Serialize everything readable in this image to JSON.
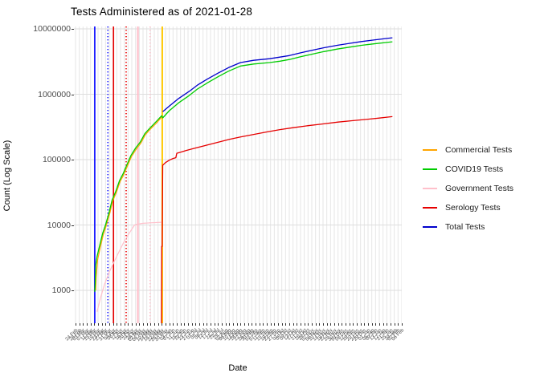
{
  "title": "Tests Administered as of 2021-01-28",
  "axes": {
    "x_label": "Date",
    "y_label": "Count (Log Scale)",
    "y_tick_labels": [
      "10000000",
      "1000000",
      "100000",
      "10000",
      "1000"
    ]
  },
  "legend": {
    "items": [
      {
        "label": "Commercial Tests",
        "color": "#FFA500"
      },
      {
        "label": "COVID19 Tests",
        "color": "#00CC00"
      },
      {
        "label": "Government Tests",
        "color": "#FFC0CB"
      },
      {
        "label": "Serology Tests",
        "color": "#E60000"
      },
      {
        "label": "Total Tests",
        "color": "#0000CC"
      }
    ]
  },
  "chart_data": {
    "type": "line",
    "title": "Tests Administered as of 2021-01-28",
    "xlabel": "Date",
    "ylabel": "Count (Log Scale)",
    "y_scale": "log10",
    "ylim": [
      300,
      11000000
    ],
    "y_ticks": [
      1000,
      10000,
      100000,
      1000000,
      10000000
    ],
    "grid": "on",
    "legend_position": "right",
    "x_tick_interval_days": 4,
    "x_start_date": "2020-02-24",
    "x_tick_labels": [
      "24 Feb",
      "28 Feb",
      "03 Mar",
      "07 Mar",
      "11 Mar",
      "15 Mar",
      "19 Mar",
      "23 Mar",
      "27 Mar",
      "31 Mar",
      "04 Apr",
      "08 Apr",
      "12 Apr",
      "16 Apr",
      "20 Apr",
      "24 Apr",
      "28 Apr",
      "02 May",
      "06 May",
      "10 May",
      "14 May",
      "18 May",
      "22 May",
      "26 May",
      "30 May",
      "03 Jun",
      "07 Jun",
      "11 Jun",
      "15 Jun",
      "19 Jun",
      "23 Jun",
      "27 Jun",
      "01 Jul",
      "05 Jul",
      "09 Jul",
      "13 Jul",
      "17 Jul",
      "21 Jul",
      "25 Jul",
      "29 Jul",
      "02 Aug",
      "06 Aug",
      "10 Aug",
      "14 Aug",
      "18 Aug",
      "22 Aug",
      "26 Aug",
      "30 Aug",
      "03 Sep",
      "07 Sep",
      "11 Sep",
      "15 Sep",
      "19 Sep",
      "23 Sep",
      "27 Sep",
      "01 Oct",
      "05 Oct",
      "09 Oct",
      "13 Oct",
      "17 Oct",
      "21 Oct",
      "25 Oct",
      "29 Oct",
      "02 Nov",
      "06 Nov",
      "10 Nov",
      "14 Nov",
      "18 Nov",
      "22 Nov",
      "26 Nov",
      "30 Nov",
      "04 Dec",
      "08 Dec",
      "12 Dec",
      "16 Dec",
      "20 Dec",
      "24 Dec",
      "28 Dec",
      "01 Jan",
      "05 Jan",
      "09 Jan",
      "13 Jan",
      "17 Jan",
      "21 Jan",
      "25 Jan",
      "29 Jan",
      "02 Feb",
      "06 Feb"
    ],
    "series": [
      {
        "name": "Commercial Tests",
        "color": "#FFA500",
        "width": 1.2,
        "points": [
          [
            21.5,
            1000
          ],
          [
            22,
            1600
          ],
          [
            23.5,
            2900
          ],
          [
            26.5,
            4600
          ],
          [
            29.5,
            7000
          ],
          [
            32.5,
            9500
          ],
          [
            36.5,
            15000
          ],
          [
            39.5,
            23000
          ],
          [
            43.5,
            31500
          ],
          [
            47.5,
            46000
          ],
          [
            51.5,
            59000
          ],
          [
            55.5,
            81000
          ],
          [
            59.5,
            110000
          ],
          [
            64.5,
            143000
          ],
          [
            69.5,
            177000
          ],
          [
            74.5,
            240000
          ],
          [
            79.5,
            290000
          ],
          [
            86.5,
            365000
          ],
          [
            92,
            450000
          ]
        ]
      },
      {
        "name": "Government Tests",
        "color": "#FFC0CB",
        "width": 1.2,
        "points": [
          [
            23,
            470
          ],
          [
            27,
            800
          ],
          [
            31,
            1250
          ],
          [
            36,
            1900
          ],
          [
            41,
            2700
          ],
          [
            46,
            3800
          ],
          [
            51,
            5300
          ],
          [
            56,
            7000
          ],
          [
            60,
            8600
          ],
          [
            63,
            10000
          ],
          [
            66,
            10300
          ],
          [
            72,
            10600
          ],
          [
            80,
            10800
          ],
          [
            92,
            11000
          ]
        ]
      },
      {
        "name": "COVID19 Tests",
        "color": "#00CC00",
        "width": 1.3,
        "points": [
          [
            20.5,
            950
          ],
          [
            21,
            1300
          ],
          [
            21.5,
            2400
          ],
          [
            23,
            3300
          ],
          [
            26,
            5000
          ],
          [
            29,
            7500
          ],
          [
            32,
            10000
          ],
          [
            36,
            16000
          ],
          [
            39,
            24000
          ],
          [
            43,
            33000
          ],
          [
            47,
            48000
          ],
          [
            51,
            62000
          ],
          [
            55,
            85000
          ],
          [
            59,
            115000
          ],
          [
            64,
            150000
          ],
          [
            69,
            185000
          ],
          [
            74,
            250000
          ],
          [
            79,
            300000
          ],
          [
            86,
            380000
          ],
          [
            92,
            470000
          ],
          [
            93,
            435000
          ],
          [
            100,
            560000
          ],
          [
            110,
            740000
          ],
          [
            121,
            950000
          ],
          [
            130,
            1200000
          ],
          [
            141,
            1500000
          ],
          [
            152,
            1850000
          ],
          [
            163,
            2250000
          ],
          [
            176,
            2700000
          ],
          [
            190,
            2900000
          ],
          [
            207,
            3050000
          ],
          [
            218,
            3200000
          ],
          [
            228,
            3400000
          ],
          [
            240,
            3750000
          ],
          [
            252,
            4100000
          ],
          [
            265,
            4500000
          ],
          [
            279,
            4900000
          ],
          [
            292,
            5250000
          ],
          [
            305,
            5600000
          ],
          [
            318,
            5900000
          ],
          [
            334,
            6250000
          ],
          [
            338,
            6350000
          ]
        ]
      },
      {
        "name": "Serology Tests",
        "color": "#E60000",
        "width": 1.3,
        "points": [
          [
            91.6,
            310
          ],
          [
            91.9,
            4700
          ],
          [
            92.4,
            4700
          ],
          [
            93,
            82000
          ],
          [
            96,
            90000
          ],
          [
            100,
            98000
          ],
          [
            104,
            104000
          ],
          [
            107,
            107000
          ],
          [
            108,
            125000
          ],
          [
            112,
            130000
          ],
          [
            118,
            138000
          ],
          [
            126,
            148000
          ],
          [
            134,
            158000
          ],
          [
            144,
            172000
          ],
          [
            154,
            188000
          ],
          [
            164,
            204000
          ],
          [
            176,
            222000
          ],
          [
            190,
            243000
          ],
          [
            204,
            265000
          ],
          [
            218,
            288000
          ],
          [
            232,
            308000
          ],
          [
            248,
            330000
          ],
          [
            264,
            352000
          ],
          [
            280,
            375000
          ],
          [
            296,
            395000
          ],
          [
            312,
            415000
          ],
          [
            324,
            432000
          ],
          [
            334,
            448000
          ],
          [
            338,
            455000
          ]
        ]
      },
      {
        "name": "Total Tests",
        "color": "#0000CC",
        "width": 1.3,
        "points": [
          [
            93,
            540000
          ],
          [
            100,
            660000
          ],
          [
            110,
            860000
          ],
          [
            121,
            1100000
          ],
          [
            130,
            1380000
          ],
          [
            141,
            1720000
          ],
          [
            152,
            2100000
          ],
          [
            163,
            2550000
          ],
          [
            176,
            3050000
          ],
          [
            190,
            3300000
          ],
          [
            207,
            3500000
          ],
          [
            218,
            3700000
          ],
          [
            228,
            3900000
          ],
          [
            240,
            4300000
          ],
          [
            252,
            4700000
          ],
          [
            265,
            5150000
          ],
          [
            279,
            5600000
          ],
          [
            292,
            6000000
          ],
          [
            305,
            6400000
          ],
          [
            318,
            6750000
          ],
          [
            334,
            7200000
          ],
          [
            338,
            7300000
          ]
        ]
      }
    ],
    "event_lines": [
      {
        "name": "event-blue-solid",
        "color": "#1A1AFF",
        "style": "solid",
        "day": 20.5,
        "width": 1.8
      },
      {
        "name": "event-blue-dotted",
        "color": "#1A1AFF",
        "style": "dotted",
        "day": 34.5,
        "width": 1.6
      },
      {
        "name": "event-red-solid",
        "color": "#E60000",
        "style": "solid",
        "day": 40.5,
        "width": 1.6
      },
      {
        "name": "event-red-dotted",
        "color": "#E60000",
        "style": "dotted",
        "day": 54,
        "width": 1.6
      },
      {
        "name": "event-pink-solid",
        "color": "#FFC0CB",
        "style": "solid",
        "day": 66.5,
        "width": 2.2
      },
      {
        "name": "event-pink-dotted",
        "color": "#FFC0CB",
        "style": "dotted",
        "day": 79.5,
        "width": 1.6
      },
      {
        "name": "event-gold-solid",
        "color": "#FFC800",
        "style": "solid",
        "day": 92.5,
        "width": 2.0
      }
    ]
  }
}
